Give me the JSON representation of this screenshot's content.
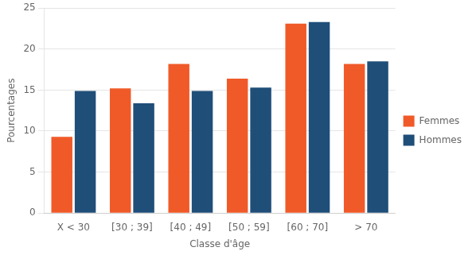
{
  "chart_data": {
    "type": "bar",
    "xlabel": "Classe d'âge",
    "ylabel": "Pourcentages",
    "categories": [
      "X < 30",
      "[30 ; 39]",
      "[40 ; 49]",
      "[50 ; 59]",
      "[60 ; 70]",
      "> 70"
    ],
    "series": [
      {
        "name": "Femmes",
        "color": "#F05A28",
        "values": [
          9.3,
          15.2,
          18.2,
          16.4,
          23.1,
          18.2
        ]
      },
      {
        "name": "Hommes",
        "color": "#1F4E79",
        "values": [
          14.9,
          13.4,
          14.9,
          15.3,
          23.3,
          18.5
        ]
      }
    ],
    "ylim": [
      0,
      25
    ],
    "yticks": [
      0,
      5,
      10,
      15,
      20,
      25
    ],
    "grid": true,
    "legend": "right"
  }
}
